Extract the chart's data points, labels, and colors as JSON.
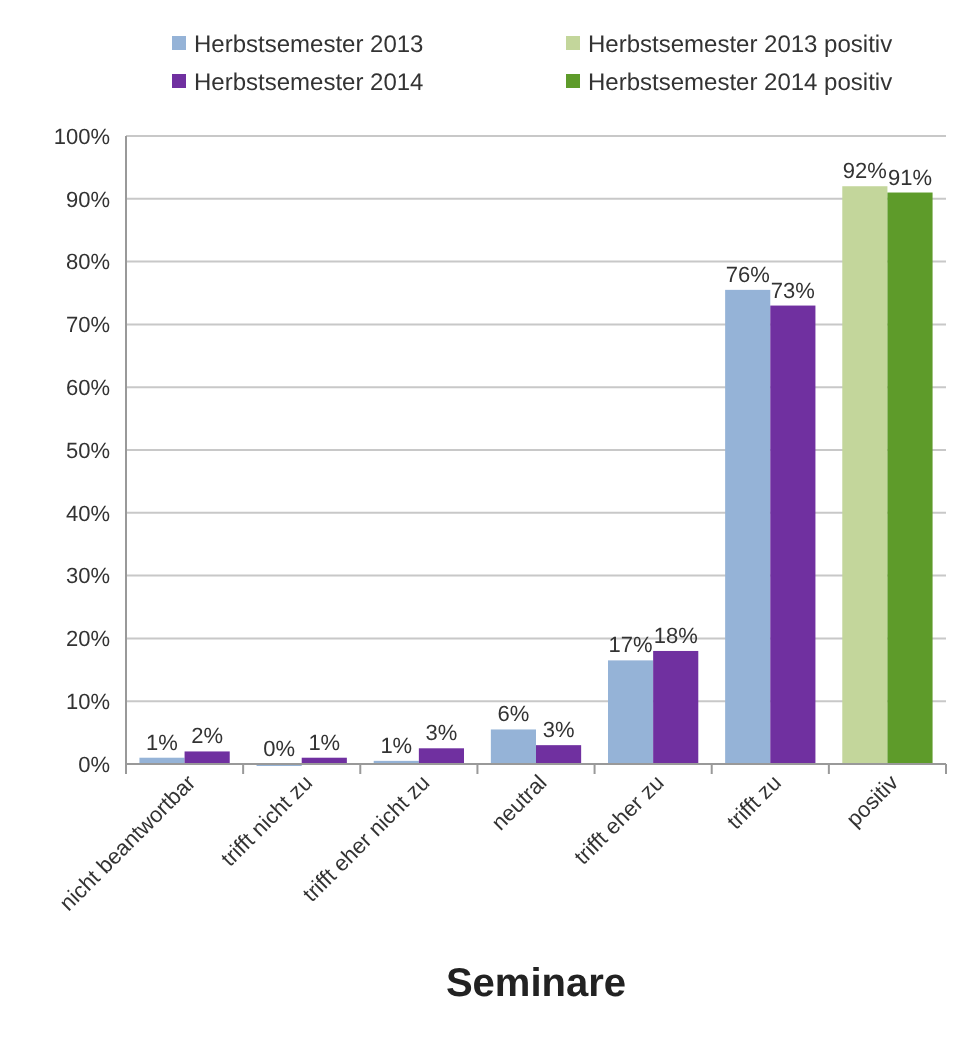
{
  "chart_data": {
    "type": "bar",
    "title": "Seminare",
    "categories": [
      "nicht beantwortbar",
      "trifft nicht zu",
      "trifft eher nicht zu",
      "neutral",
      "trifft eher zu",
      "trifft zu",
      "positiv"
    ],
    "series": [
      {
        "name": "Herbstsemester 2013",
        "color": "#95b3d7",
        "values": [
          1,
          0,
          0.5,
          5.5,
          16.5,
          75.5,
          null
        ],
        "value_labels": [
          "1%",
          "0%",
          "1%",
          "6%",
          "17%",
          "76%",
          null
        ]
      },
      {
        "name": "Herbstsemester 2014",
        "color": "#7030a0",
        "values": [
          2,
          1,
          2.5,
          3,
          18,
          73,
          null
        ],
        "value_labels": [
          "2%",
          "1%",
          "3%",
          "3%",
          "18%",
          "73%",
          null
        ]
      },
      {
        "name": "Herbstsemester 2013 positiv",
        "color": "#c3d69b",
        "values": [
          null,
          null,
          null,
          null,
          null,
          null,
          92
        ],
        "value_labels": [
          null,
          null,
          null,
          null,
          null,
          null,
          "92%"
        ]
      },
      {
        "name": "Herbstsemester 2014 positiv",
        "color": "#5e9b2a",
        "values": [
          null,
          null,
          null,
          null,
          null,
          null,
          91
        ],
        "value_labels": [
          null,
          null,
          null,
          null,
          null,
          null,
          "91%"
        ]
      }
    ],
    "ylim": [
      0,
      100
    ],
    "yticks": [
      {
        "value": 0,
        "label": "0%"
      },
      {
        "value": 10,
        "label": "10%"
      },
      {
        "value": 20,
        "label": "20%"
      },
      {
        "value": 30,
        "label": "30%"
      },
      {
        "value": 40,
        "label": "40%"
      },
      {
        "value": 50,
        "label": "50%"
      },
      {
        "value": 60,
        "label": "60%"
      },
      {
        "value": 70,
        "label": "70%"
      },
      {
        "value": 80,
        "label": "80%"
      },
      {
        "value": 90,
        "label": "90%"
      },
      {
        "value": 100,
        "label": "100%"
      }
    ],
    "grid": "y",
    "legend": "top"
  }
}
